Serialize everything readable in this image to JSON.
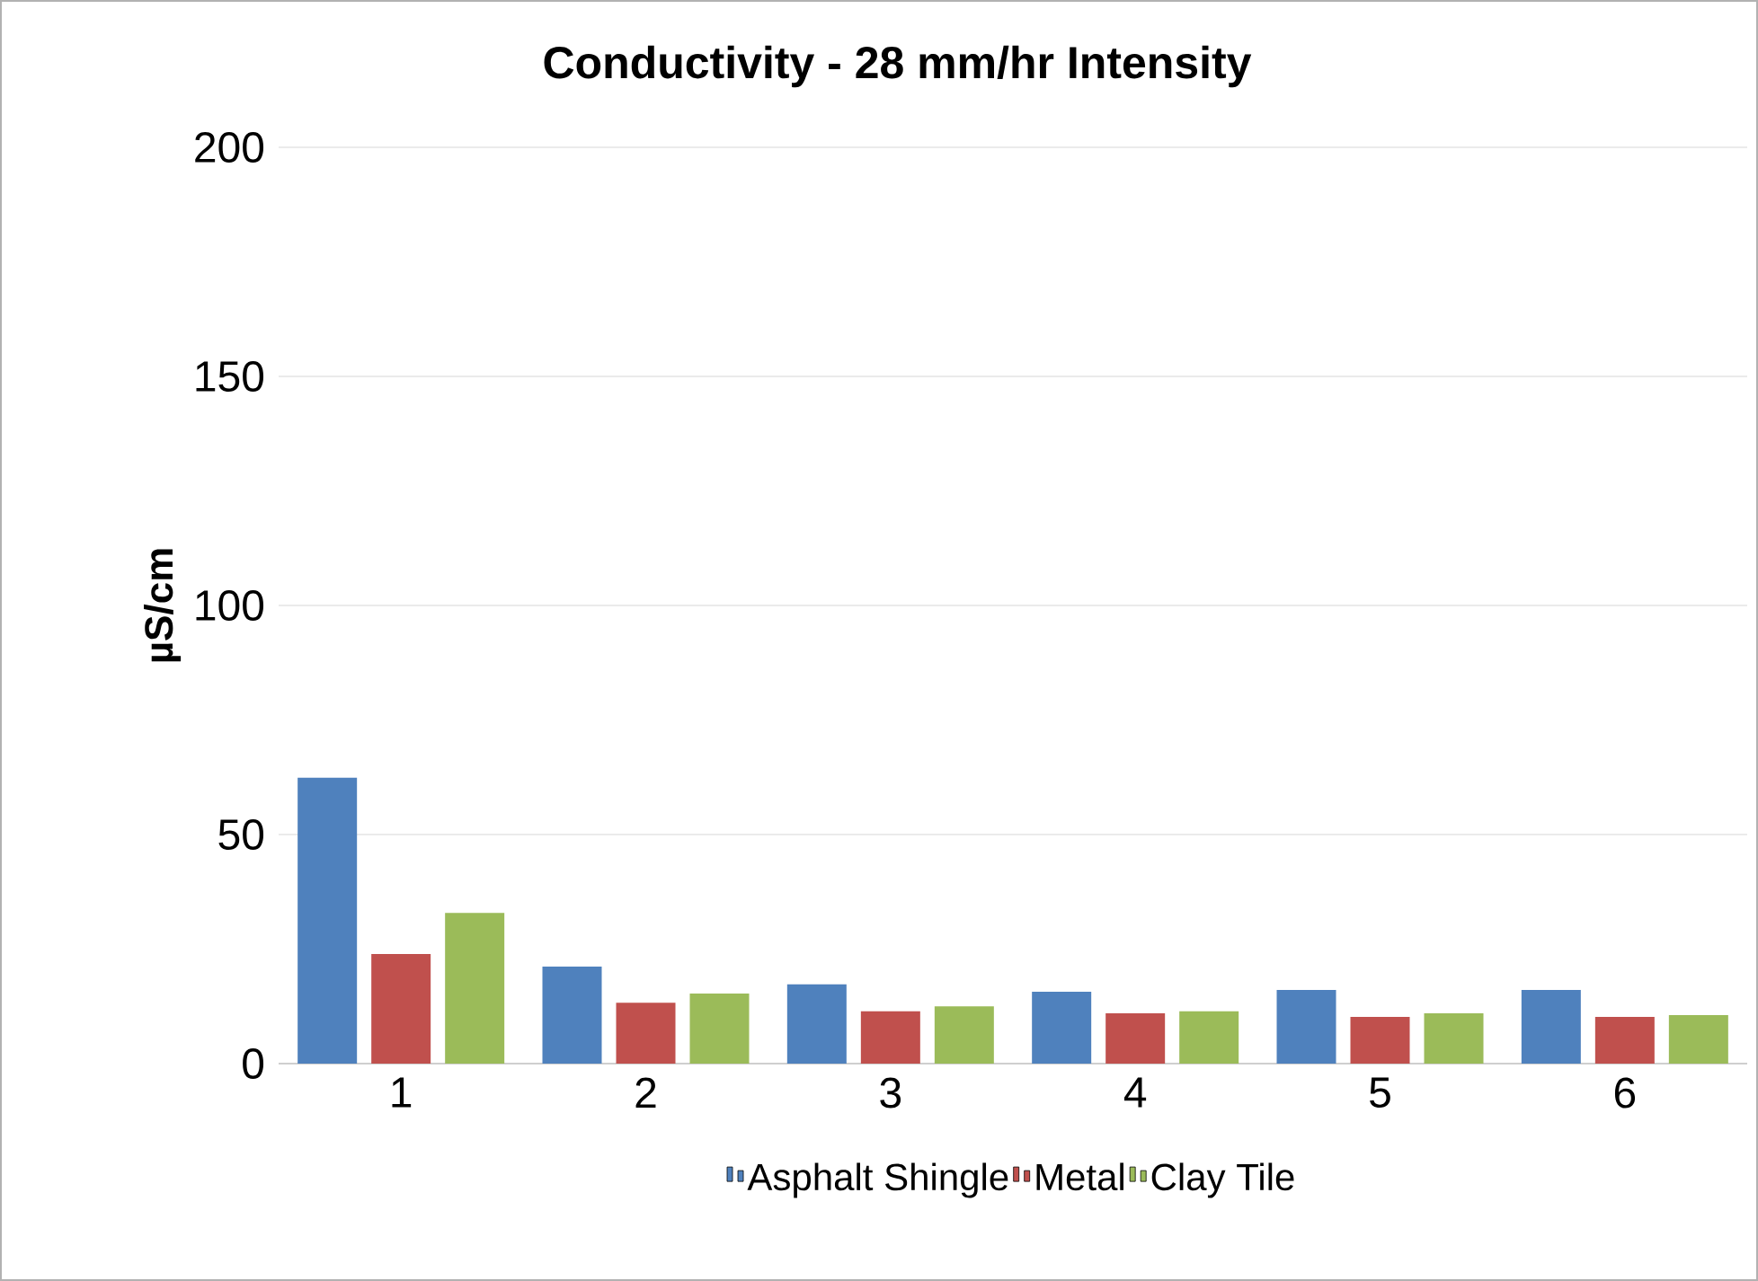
{
  "chart_data": {
    "type": "bar",
    "title": "Conductivity - 28 mm/hr Intensity",
    "ylabel": "µS/cm",
    "categories": [
      "1",
      "2",
      "3",
      "4",
      "5",
      "6"
    ],
    "series": [
      {
        "name": "Asphalt Shingle",
        "color": "#4f81bd",
        "values": [
          62.4,
          21.2,
          17.3,
          15.7,
          16.1,
          16.1
        ]
      },
      {
        "name": "Metal",
        "color": "#c0504d",
        "values": [
          23.9,
          13.3,
          11.4,
          11.0,
          10.2,
          10.2
        ]
      },
      {
        "name": "Clay Tile",
        "color": "#9bbb59",
        "values": [
          32.9,
          15.3,
          12.5,
          11.4,
          11.0,
          10.6
        ]
      }
    ],
    "ylim": [
      0,
      200
    ],
    "yticks": [
      0,
      50,
      100,
      150,
      200
    ],
    "grid": "y",
    "legend": "bottom"
  }
}
